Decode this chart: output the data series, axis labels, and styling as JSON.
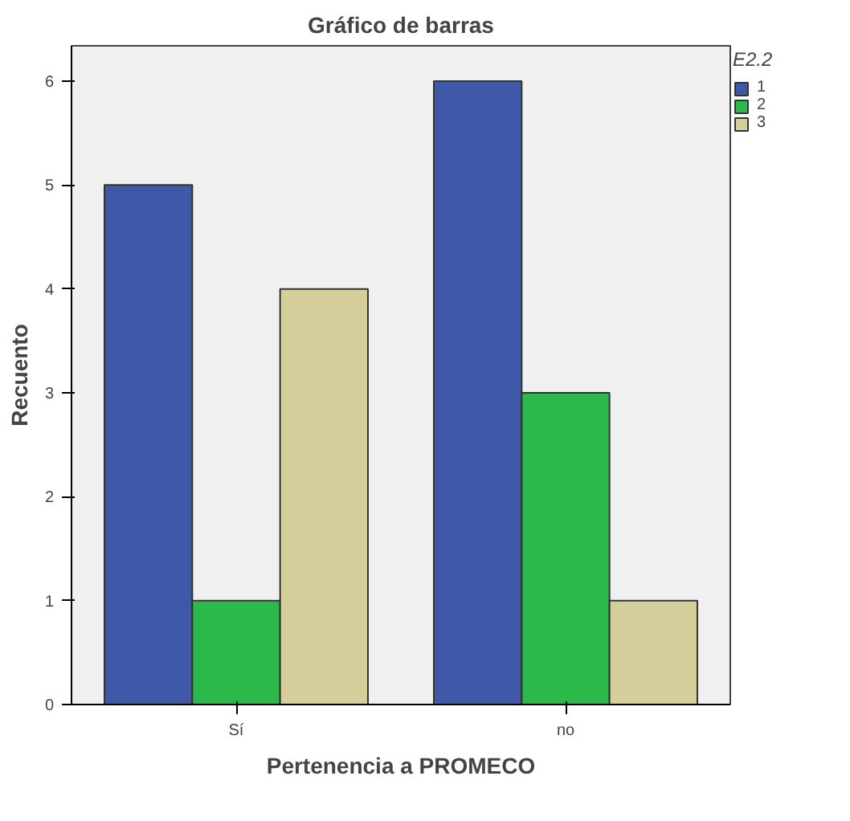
{
  "chart_data": {
    "type": "bar",
    "title": "Gráfico de barras",
    "xlabel": "Pertenencia a PROMECO",
    "ylabel": "Recuento",
    "legend_title": "E2.2",
    "categories": [
      "Sí",
      "no"
    ],
    "series": [
      {
        "name": "1",
        "color": "#3f58a8",
        "values": [
          5,
          6
        ]
      },
      {
        "name": "2",
        "color": "#2db84b",
        "values": [
          1,
          3
        ]
      },
      {
        "name": "3",
        "color": "#d4cf9b",
        "values": [
          4,
          1
        ]
      }
    ],
    "ylim": [
      0,
      6.34
    ],
    "yticks": [
      0,
      1,
      2,
      3,
      4,
      5,
      6
    ],
    "legend": "top right"
  }
}
